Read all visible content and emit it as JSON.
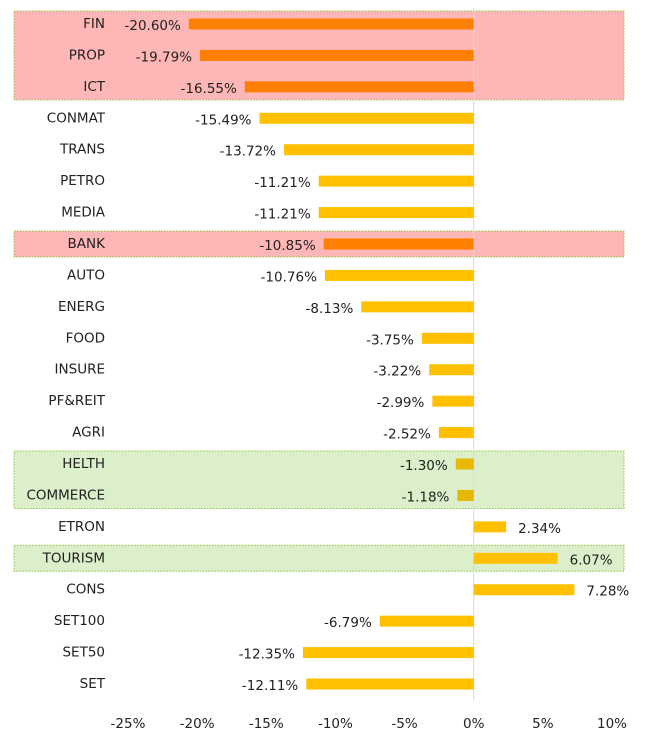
{
  "chart_data": {
    "type": "barh",
    "categories": [
      "FIN",
      "PROP",
      "ICT",
      "CONMAT",
      "TRANS",
      "PETRO",
      "MEDIA",
      "BANK",
      "AUTO",
      "ENERG",
      "FOOD",
      "INSURE",
      "PF&REIT",
      "AGRI",
      "HELTH",
      "COMMERCE",
      "ETRON",
      "TOURISM",
      "CONS",
      "SET100",
      "SET50",
      "SET"
    ],
    "values": [
      -20.6,
      -19.79,
      -16.55,
      -15.49,
      -13.72,
      -11.21,
      -11.21,
      -10.85,
      -10.76,
      -8.13,
      -3.75,
      -3.22,
      -2.99,
      -2.52,
      -1.3,
      -1.18,
      2.34,
      6.07,
      7.28,
      -6.79,
      -12.35,
      -12.11
    ],
    "value_labels": [
      "-20.60%",
      "-19.79%",
      "-16.55%",
      "-15.49%",
      "-13.72%",
      "-11.21%",
      "-11.21%",
      "-10.85%",
      "-10.76%",
      "-8.13%",
      "-3.75%",
      "-3.22%",
      "-2.99%",
      "-2.52%",
      "-1.30%",
      "-1.18%",
      "2.34%",
      "6.07%",
      "7.28%",
      "-6.79%",
      "-12.35%",
      "-12.11%"
    ],
    "colors": [
      "#ff7f00",
      "#ff7f00",
      "#ff7f00",
      "#ffc000",
      "#ffc000",
      "#ffc000",
      "#ffc000",
      "#ff7f00",
      "#ffc000",
      "#ffc000",
      "#ffc000",
      "#ffc000",
      "#ffc000",
      "#ffc000",
      "#e6b800",
      "#e6b800",
      "#ffc000",
      "#ffc000",
      "#ffc000",
      "#ffc000",
      "#ffc000",
      "#ffc000"
    ],
    "row_highlights": [
      "#ffb6b6",
      "#ffb6b6",
      "#ffb6b6",
      null,
      null,
      null,
      null,
      "#ffb6b6",
      null,
      null,
      null,
      null,
      null,
      null,
      "#dcefcb",
      "#dcefcb",
      null,
      "#dcefcb",
      null,
      null,
      null,
      null
    ],
    "xlim": [
      -25,
      10
    ],
    "xticks": [
      {
        "value": -25,
        "label": "-25%"
      },
      {
        "value": -20,
        "label": "-20%"
      },
      {
        "value": -15,
        "label": "-15%"
      },
      {
        "value": -10,
        "label": "-10%"
      },
      {
        "value": -5,
        "label": "-5%"
      },
      {
        "value": 0,
        "label": "0%"
      },
      {
        "value": 5,
        "label": "5%"
      },
      {
        "value": 10,
        "label": "10%"
      }
    ]
  }
}
